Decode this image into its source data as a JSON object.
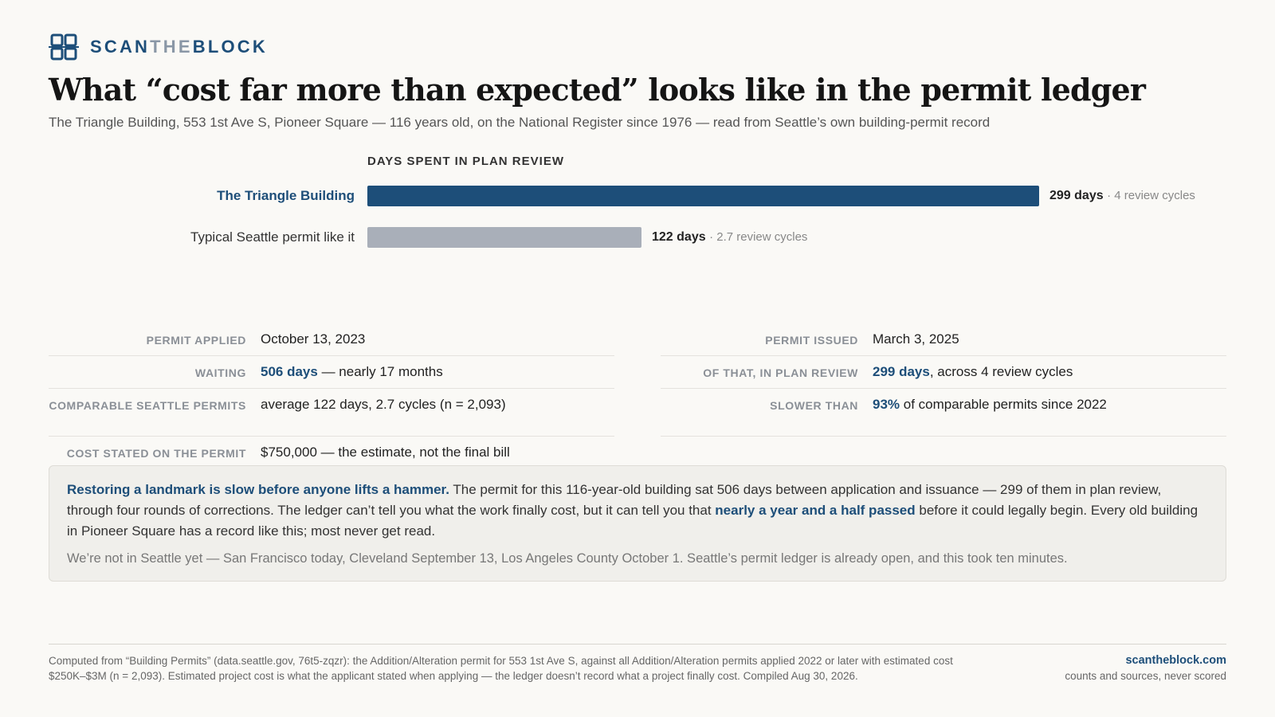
{
  "brand": {
    "name_start": "SCAN",
    "name_mid": "THE",
    "name_end": "BLOCK",
    "colors": {
      "primary": "#1d4e79",
      "muted": "#8a97a6"
    }
  },
  "title": "What “cost far more than expected” looks like in the permit ledger",
  "subtitle": "The Triangle Building, 553 1st Ave S, Pioneer Square — 116 years old, on the National Register since 1976 — read from Seattle’s own building-permit record",
  "chart_data": {
    "type": "bar",
    "orientation": "horizontal",
    "title": "DAYS SPENT IN PLAN REVIEW",
    "categories": [
      "The Triangle Building",
      "Typical Seattle permit like it"
    ],
    "values": [
      299,
      122
    ],
    "value_labels": [
      "299 days",
      "122 days"
    ],
    "cycle_labels": [
      "· 4 review cycles",
      "· 2.7 review cycles"
    ],
    "colors": [
      "#1d4e79",
      "#a9afb9"
    ],
    "xlim": [
      0,
      299
    ],
    "grid": false
  },
  "facts": {
    "left": [
      {
        "label": "PERMIT APPLIED",
        "value": "October 13, 2023"
      },
      {
        "label": "WAITING",
        "em": "506 days",
        "rest": " — nearly 17 months"
      },
      {
        "label": "COMPARABLE SEATTLE PERMITS",
        "value": "average 122 days, 2.7 cycles (n = 2,093)"
      },
      {
        "label": "COST STATED ON THE PERMIT",
        "value": "$750,000 — the estimate, not the final bill"
      }
    ],
    "right": [
      {
        "label": "PERMIT ISSUED",
        "value": "March 3, 2025"
      },
      {
        "label": "OF THAT, IN PLAN REVIEW",
        "em": "299 days",
        "rest": ", across 4 review cycles"
      },
      {
        "label": "SLOWER THAN",
        "em": "93%",
        "rest": " of comparable permits since 2022"
      }
    ]
  },
  "callout": {
    "lead": "Restoring a landmark is slow before anyone lifts a hammer.",
    "text1": " The permit for this 116-year-old building sat 506 days between application and issuance — 299 of them in plan review, through four rounds of corrections. The ledger can’t tell you what the work finally cost, but it can tell you that ",
    "em": "nearly a year and a half passed",
    "text2": " before it could legally begin. Every old building in Pioneer Square has a record like this; most never get read.",
    "note": "We’re not in Seattle yet — San Francisco today, Cleveland September 13, Los Angeles County October 1. Seattle’s permit ledger is already open, and this took ten minutes."
  },
  "footer": {
    "source": "Computed from “Building Permits” (data.seattle.gov, 76t5-zqzr): the Addition/Alteration permit for 553 1st Ave S, against all Addition/Alteration permits applied 2022 or later with estimated cost $250K–$3M (n = 2,093). Estimated project cost is what the applicant stated when applying — the ledger doesn’t record what a project finally cost. Compiled Aug 30, 2026.",
    "site": "scantheblock.com",
    "tagline": "counts and sources, never scored"
  }
}
